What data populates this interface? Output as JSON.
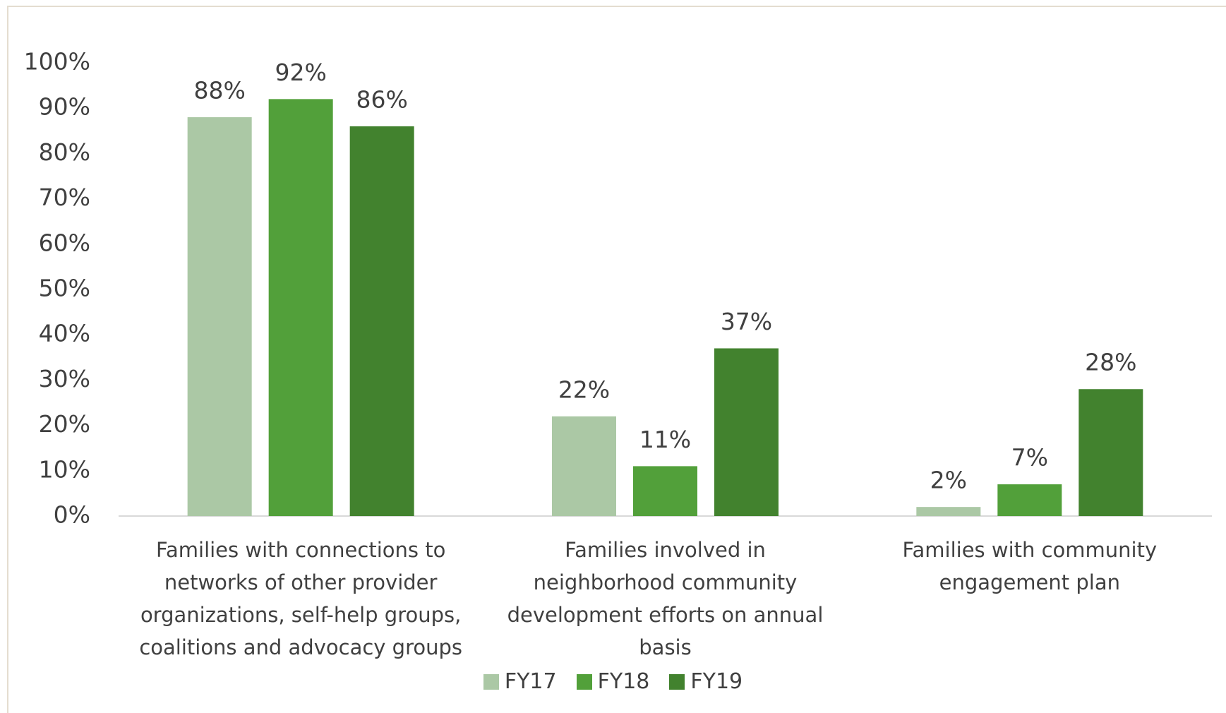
{
  "chart_data": {
    "type": "bar",
    "categories": [
      "Families with connections to networks of other provider organizations, self-help groups, coalitions and advocacy groups",
      "Families involved in neighborhood community development efforts on annual basis",
      "Families with community engagement plan"
    ],
    "series": [
      {
        "name": "FY17",
        "color": "#abc8a5",
        "values": [
          88,
          22,
          2
        ],
        "value_labels": [
          "88%",
          "22%",
          "2%"
        ]
      },
      {
        "name": "FY18",
        "color": "#52a03a",
        "values": [
          92,
          11,
          7
        ],
        "value_labels": [
          "92%",
          "11%",
          "7%"
        ]
      },
      {
        "name": "FY19",
        "color": "#42822e",
        "values": [
          86,
          37,
          28
        ],
        "value_labels": [
          "86%",
          "37%",
          "28%"
        ]
      }
    ],
    "ylim": [
      0,
      100
    ],
    "yticks": [
      {
        "value": 0,
        "label": "0%"
      },
      {
        "value": 10,
        "label": "10%"
      },
      {
        "value": 20,
        "label": "20%"
      },
      {
        "value": 30,
        "label": "30%"
      },
      {
        "value": 40,
        "label": "40%"
      },
      {
        "value": 50,
        "label": "50%"
      },
      {
        "value": 60,
        "label": "60%"
      },
      {
        "value": 70,
        "label": "70%"
      },
      {
        "value": 80,
        "label": "80%"
      },
      {
        "value": 90,
        "label": "90%"
      },
      {
        "value": 100,
        "label": "100%"
      }
    ],
    "legend": "bottom"
  }
}
